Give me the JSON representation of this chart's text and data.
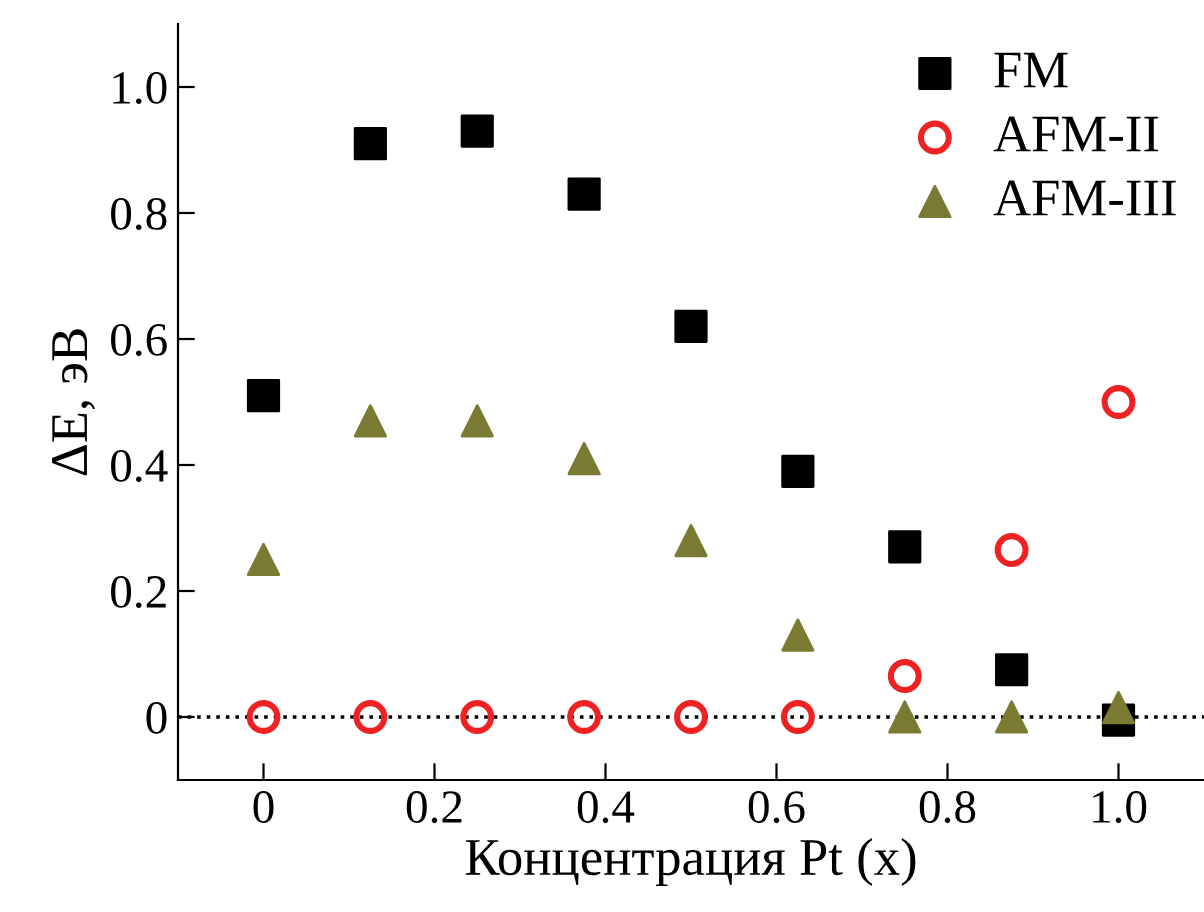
{
  "chart_data": {
    "type": "scatter",
    "xlabel": "Концентрация Pt (x)",
    "ylabel": "ΔE, эВ",
    "x": [
      0,
      0.125,
      0.25,
      0.375,
      0.5,
      0.625,
      0.75,
      0.875,
      1.0
    ],
    "series": [
      {
        "name": "FM",
        "color": "#000000",
        "marker": "square",
        "values": [
          0.51,
          0.91,
          0.93,
          0.83,
          0.62,
          0.39,
          0.27,
          0.075,
          -0.005
        ]
      },
      {
        "name": "AFM-II",
        "color": "#ee2222",
        "marker": "circle",
        "values": [
          0,
          0,
          0,
          0,
          0,
          0,
          0.065,
          0.265,
          0.5
        ]
      },
      {
        "name": "AFM-III",
        "color": "#7b7a32",
        "marker": "triangle",
        "values": [
          0.25,
          0.47,
          0.47,
          0.41,
          0.28,
          0.13,
          0.0,
          0.0,
          0.015
        ]
      }
    ],
    "xlim": [
      -0.1,
      1.1
    ],
    "ylim": [
      -0.1,
      1.1
    ],
    "xticks": [
      0,
      0.2,
      0.4,
      0.6,
      0.8,
      {
        "value": 1.0,
        "label": "1.0"
      }
    ],
    "yticks": [
      0,
      0.2,
      0.4,
      0.6,
      0.8,
      {
        "value": 1.0,
        "label": "1.0"
      }
    ],
    "ref_lines": [
      {
        "axis": "y",
        "value": 0,
        "color": "#000000",
        "line_style": "dotted"
      }
    ],
    "legend": "top right",
    "grid": false
  }
}
